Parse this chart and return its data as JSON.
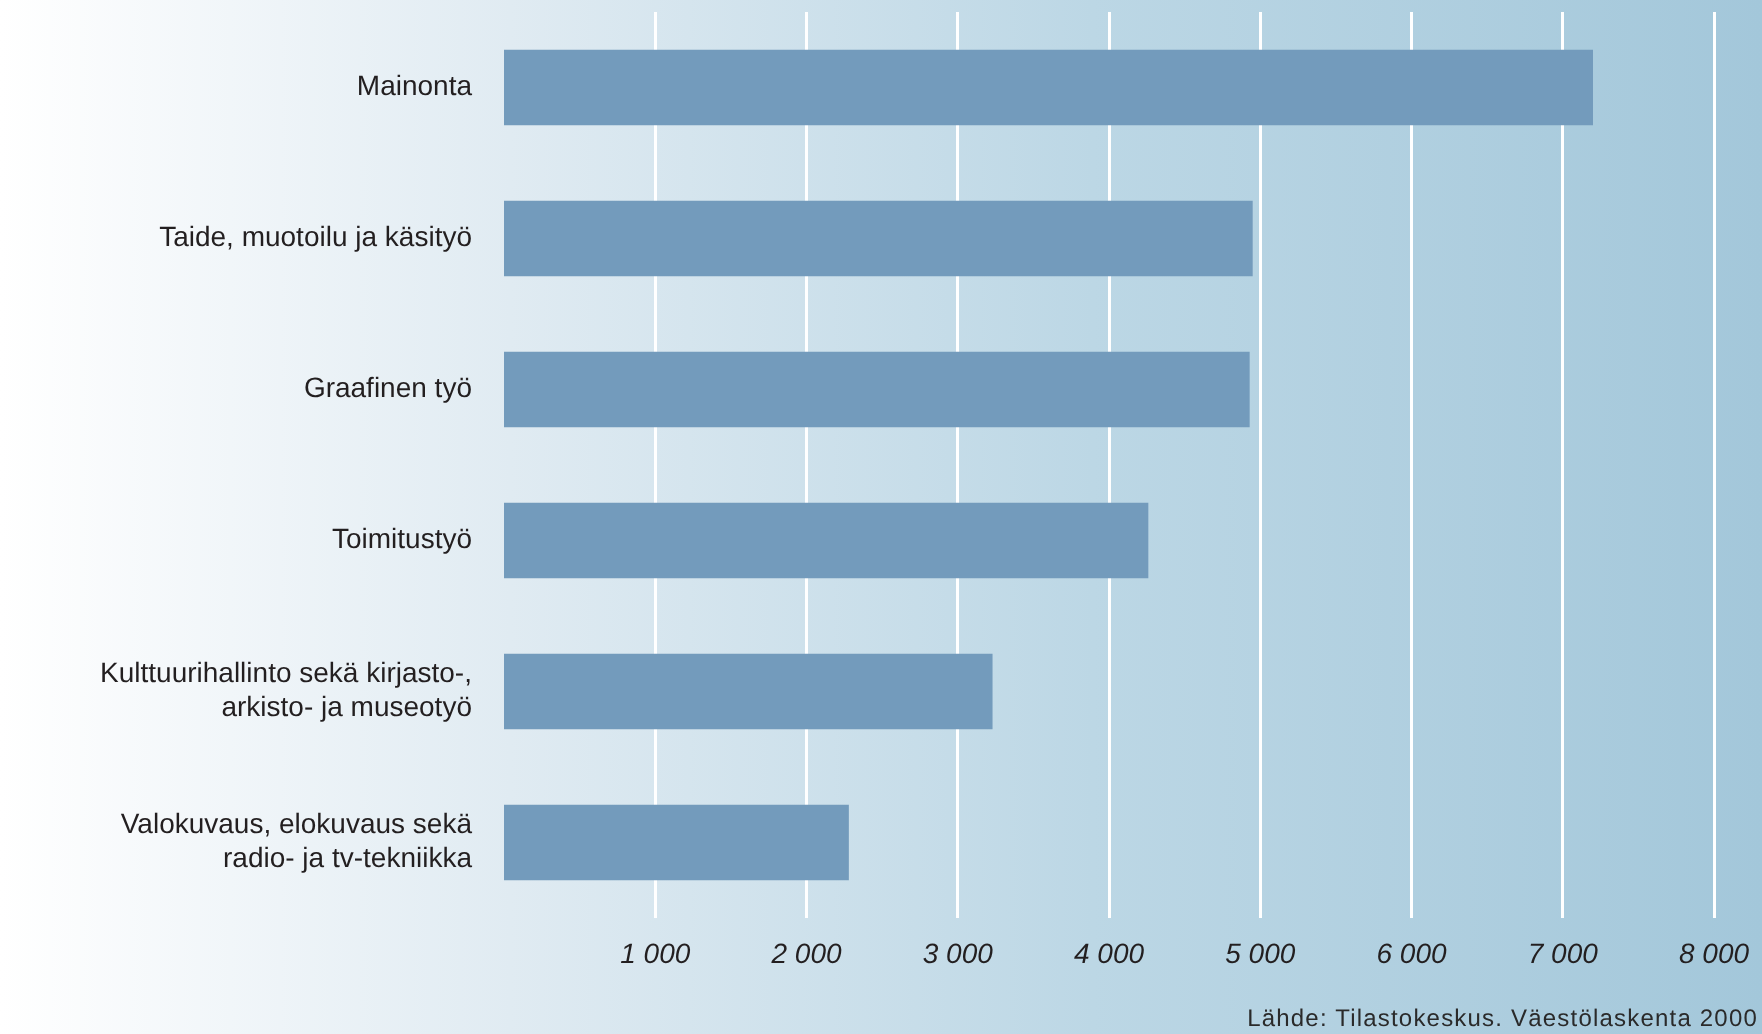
{
  "chart_data": {
    "type": "bar",
    "orientation": "horizontal",
    "categories": [
      "Mainonta",
      "Taide, muotoilu ja käsityö",
      "Graafinen työ",
      "Toimitustyö",
      "Kulttuurihallinto sekä kirjasto-,\narkisto- ja museotyö",
      "Valokuvaus, elokuvaus sekä\nradio- ja tv-tekniikka"
    ],
    "values": [
      7200,
      4950,
      4930,
      4260,
      3230,
      2280
    ],
    "color": "#739bbc",
    "xlim": [
      0,
      8000
    ],
    "xticks": [
      {
        "value": 1000,
        "label": "1 000"
      },
      {
        "value": 2000,
        "label": "2 000"
      },
      {
        "value": 3000,
        "label": "3 000"
      },
      {
        "value": 4000,
        "label": "4 000"
      },
      {
        "value": 5000,
        "label": "5 000"
      },
      {
        "value": 6000,
        "label": "6 000"
      },
      {
        "value": 7000,
        "label": "7 000"
      },
      {
        "value": 8000,
        "label": "8 000"
      }
    ],
    "grid": "x",
    "annotations": [
      "Lähde: Tilastokeskus. Väestölaskenta 2000"
    ]
  }
}
